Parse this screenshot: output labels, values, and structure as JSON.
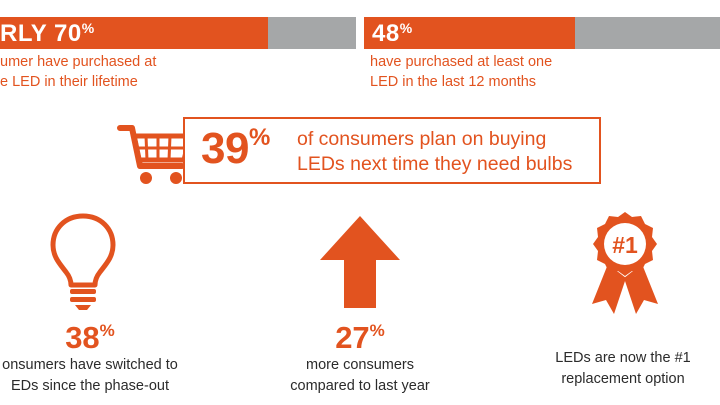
{
  "colors": {
    "accent": "#e2531f",
    "gray": "#a5a7a8",
    "text": "#2b2b2b"
  },
  "top_left": {
    "stat": "RLY 70",
    "percent_sign": "%",
    "line1": "umer have purchased at",
    "line2": "e LED in their lifetime",
    "fill_fraction": 0.7
  },
  "top_right": {
    "stat": "48",
    "percent_sign": "%",
    "line1": "have purchased at least one",
    "line2": "LED in the last 12 months",
    "fill_fraction": 0.48
  },
  "callout": {
    "icon": "shopping-cart-icon",
    "stat": "39",
    "percent_sign": "%",
    "line1": "of consumers plan on buying",
    "line2": "LEDs next time they need bulbs"
  },
  "stats": [
    {
      "icon": "light-bulb-icon",
      "value": "38",
      "percent_sign": "%",
      "line1": "onsumers have switched to",
      "line2": "EDs since the phase-out"
    },
    {
      "icon": "up-arrow-icon",
      "value": "27",
      "percent_sign": "%",
      "line1": "more consumers",
      "line2": "compared to last year"
    },
    {
      "icon": "award-ribbon-icon",
      "badge": "#1",
      "line1": "LEDs are now the #1",
      "line2": "replacement option"
    }
  ]
}
